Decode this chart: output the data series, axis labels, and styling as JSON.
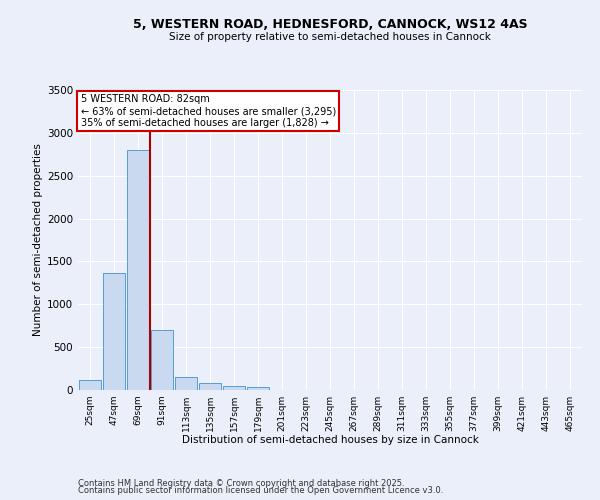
{
  "title": "5, WESTERN ROAD, HEDNESFORD, CANNOCK, WS12 4AS",
  "subtitle": "Size of property relative to semi-detached houses in Cannock",
  "xlabel": "Distribution of semi-detached houses by size in Cannock",
  "ylabel": "Number of semi-detached properties",
  "categories": [
    "25sqm",
    "47sqm",
    "69sqm",
    "91sqm",
    "113sqm",
    "135sqm",
    "157sqm",
    "179sqm",
    "201sqm",
    "223sqm",
    "245sqm",
    "267sqm",
    "289sqm",
    "311sqm",
    "333sqm",
    "355sqm",
    "377sqm",
    "399sqm",
    "421sqm",
    "443sqm",
    "465sqm"
  ],
  "values": [
    120,
    1370,
    2800,
    700,
    150,
    80,
    45,
    35,
    0,
    0,
    0,
    0,
    0,
    0,
    0,
    0,
    0,
    0,
    0,
    0,
    0
  ],
  "bar_color": "#c9d9f0",
  "bar_edge_color": "#5a9bd5",
  "vline_color": "#aa0000",
  "annotation_line1": "5 WESTERN ROAD: 82sqm",
  "annotation_line2": "← 63% of semi-detached houses are smaller (3,295)",
  "annotation_line3": "35% of semi-detached houses are larger (1,828) →",
  "annotation_box_color": "#ffffff",
  "annotation_box_edge": "#cc0000",
  "ylim": [
    0,
    3500
  ],
  "yticks": [
    0,
    500,
    1000,
    1500,
    2000,
    2500,
    3000,
    3500
  ],
  "bg_color": "#eaeff9",
  "plot_bg_color": "#eaeff9",
  "grid_color": "#ffffff",
  "footer1": "Contains HM Land Registry data © Crown copyright and database right 2025.",
  "footer2": "Contains public sector information licensed under the Open Government Licence v3.0."
}
